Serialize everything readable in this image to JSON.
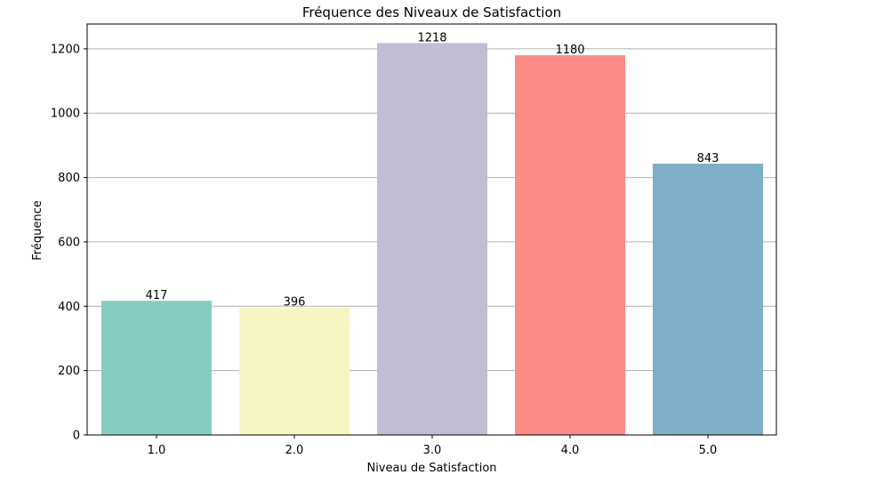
{
  "chart_data": {
    "type": "bar",
    "title": "Fréquence des Niveaux de Satisfaction",
    "xlabel": "Niveau de Satisfaction",
    "ylabel": "Fréquence",
    "categories": [
      "1.0",
      "2.0",
      "3.0",
      "4.0",
      "5.0"
    ],
    "values": [
      417,
      396,
      1218,
      1180,
      843
    ],
    "value_labels": [
      "417",
      "396",
      "1218",
      "1180",
      "843"
    ],
    "colors": [
      "#86cdc1",
      "#f7f6c2",
      "#c1bed3",
      "#fb8b84",
      "#7faec8"
    ],
    "ylim": [
      0,
      1277
    ],
    "yticks": [
      0,
      200,
      400,
      600,
      800,
      1000,
      1200
    ],
    "ytick_labels": [
      "0",
      "200",
      "400",
      "600",
      "800",
      "1000",
      "1200"
    ],
    "grid": "y"
  }
}
